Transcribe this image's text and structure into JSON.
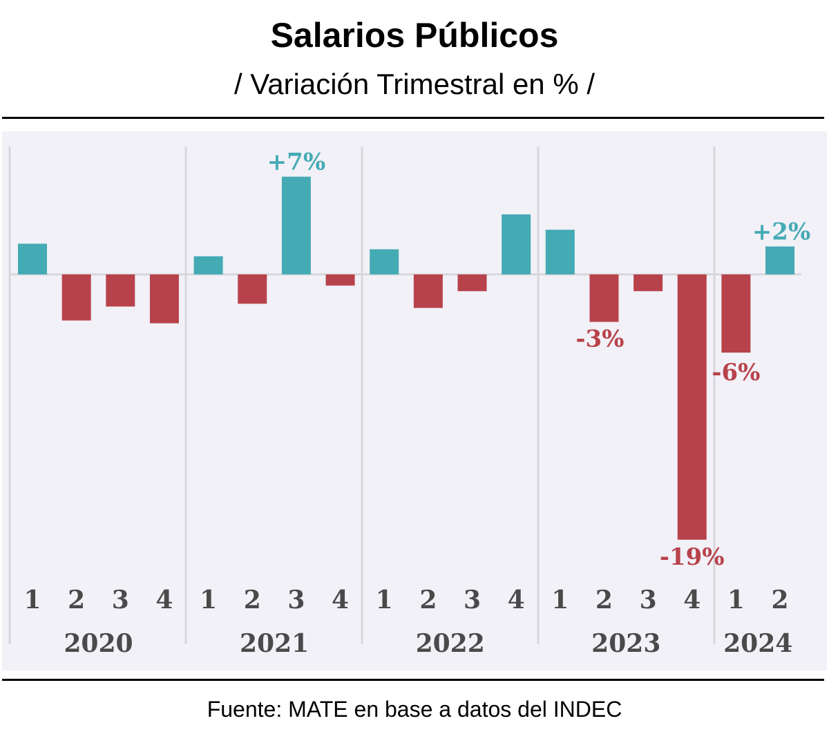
{
  "chart_data": {
    "type": "bar",
    "title": "Salarios Públicos",
    "subtitle": "/ Variación Trimestral en % /",
    "source": "Fuente: MATE en base a datos del INDEC",
    "ylabel": "",
    "xlabel": "",
    "ylim": [
      -21,
      9.5
    ],
    "grid": false,
    "groups": [
      {
        "year": "2020",
        "quarters": [
          "1",
          "2",
          "3",
          "4"
        ]
      },
      {
        "year": "2021",
        "quarters": [
          "1",
          "2",
          "3",
          "4"
        ]
      },
      {
        "year": "2022",
        "quarters": [
          "1",
          "2",
          "3",
          "4"
        ]
      },
      {
        "year": "2023",
        "quarters": [
          "1",
          "2",
          "3",
          "4"
        ]
      },
      {
        "year": "2024",
        "quarters": [
          "1",
          "2"
        ]
      }
    ],
    "values": [
      2.2,
      -3.3,
      -2.3,
      -3.5,
      1.3,
      -2.1,
      7,
      -0.8,
      1.8,
      -2.4,
      -1.2,
      4.3,
      3.2,
      -3.4,
      -1.2,
      -19,
      -5.6,
      2
    ],
    "data_labels": [
      {
        "index": 6,
        "text": "+7%"
      },
      {
        "index": 13,
        "text": "-3%"
      },
      {
        "index": 15,
        "text": "-19%"
      },
      {
        "index": 16,
        "text": "-6%"
      },
      {
        "index": 17,
        "text": "+2%"
      }
    ],
    "colors": {
      "positive": "#44aab4",
      "negative": "#b8424b",
      "panel": "#f1f1f7",
      "axis_text": "#4a4a4a"
    }
  }
}
